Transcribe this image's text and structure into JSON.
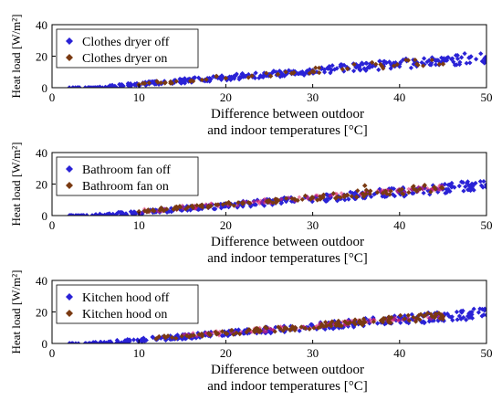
{
  "figure": {
    "panels": [
      {
        "legend": [
          "Clothes dryer off",
          "Clothes dryer on"
        ]
      },
      {
        "legend": [
          "Bathroom fan off",
          "Bathroom fan on"
        ]
      },
      {
        "legend": [
          "Kitchen hood off",
          "Kitchen hood on"
        ]
      }
    ],
    "xlabel_line1": "Difference between outdoor",
    "xlabel_line2": "and indoor temperatures [°C]",
    "ylabel": "Heat load [W/m²]"
  },
  "colors": {
    "off": "#2a22d6",
    "on": "#7a3a12",
    "on_highlight": "#e0206a",
    "axis": "#000000"
  },
  "chart_data": [
    {
      "type": "scatter",
      "xlabel": "Difference between outdoor and indoor temperatures [°C]",
      "ylabel": "Heat load [W/m²]",
      "xlim": [
        0,
        50
      ],
      "ylim": [
        0,
        40
      ],
      "xticks": [
        0,
        10,
        20,
        30,
        40,
        50
      ],
      "yticks": [
        0,
        20,
        40
      ],
      "legend_position": "top-left",
      "series": [
        {
          "name": "Clothes dryer off",
          "marker": "diamond",
          "trend": {
            "slope": 0.43,
            "intercept": -2.2
          },
          "x_range": [
            2,
            50
          ],
          "density": 340,
          "x": [
            2,
            5,
            8,
            10,
            12,
            15,
            18,
            20,
            22,
            25,
            28,
            30,
            32,
            35,
            38,
            40,
            42,
            45,
            48,
            50
          ],
          "y": [
            0,
            0,
            0.5,
            1.5,
            2.5,
            3.5,
            5,
            6,
            7,
            8.5,
            10,
            11,
            12,
            13,
            14,
            15,
            16,
            17,
            19,
            18
          ]
        },
        {
          "name": "Clothes dryer on",
          "marker": "diamond",
          "trend": {
            "slope": 0.43,
            "intercept": -2.0
          },
          "x_range": [
            10,
            45
          ],
          "density": 45,
          "x": [
            10,
            13,
            16,
            20,
            23,
            26,
            30,
            34,
            38,
            42,
            45
          ],
          "y": [
            2,
            3,
            4.5,
            6,
            7.5,
            8.5,
            10.5,
            12,
            13.5,
            15,
            15
          ]
        }
      ]
    },
    {
      "type": "scatter",
      "xlabel": "Difference between outdoor and indoor temperatures [°C]",
      "ylabel": "Heat load [W/m²]",
      "xlim": [
        0,
        50
      ],
      "ylim": [
        0,
        40
      ],
      "xticks": [
        0,
        10,
        20,
        30,
        40,
        50
      ],
      "yticks": [
        0,
        20,
        40
      ],
      "legend_position": "top-left",
      "series": [
        {
          "name": "Bathroom fan off",
          "marker": "diamond",
          "trend": {
            "slope": 0.43,
            "intercept": -2.2
          },
          "x_range": [
            2,
            50
          ],
          "density": 340,
          "x": [
            2,
            5,
            8,
            10,
            12,
            15,
            18,
            20,
            22,
            25,
            28,
            30,
            32,
            35,
            38,
            40,
            42,
            45,
            48,
            50
          ],
          "y": [
            0,
            0,
            0.5,
            1.5,
            2.5,
            3.5,
            5,
            6,
            7,
            8.5,
            10,
            11,
            12,
            13,
            14,
            15,
            16,
            17,
            19,
            18
          ]
        },
        {
          "name": "Bathroom fan on",
          "marker": "diamond",
          "trend": {
            "slope": 0.43,
            "intercept": -1.5
          },
          "x_range": [
            10,
            45
          ],
          "density": 110,
          "x": [
            10,
            14,
            18,
            22,
            26,
            30,
            34,
            36,
            40,
            44
          ],
          "y": [
            2.5,
            4,
            6,
            8,
            9.5,
            11.5,
            13,
            19,
            16,
            18
          ]
        }
      ]
    },
    {
      "type": "scatter",
      "xlabel": "Difference between outdoor and indoor temperatures [°C]",
      "ylabel": "Heat load [W/m²]",
      "xlim": [
        0,
        50
      ],
      "ylim": [
        0,
        40
      ],
      "xticks": [
        0,
        10,
        20,
        30,
        40,
        50
      ],
      "yticks": [
        0,
        20,
        40
      ],
      "legend_position": "top-left",
      "series": [
        {
          "name": "Kitchen hood off",
          "marker": "diamond",
          "trend": {
            "slope": 0.43,
            "intercept": -2.2
          },
          "x_range": [
            2,
            50
          ],
          "density": 340,
          "x": [
            2,
            5,
            8,
            10,
            12,
            15,
            18,
            20,
            22,
            25,
            28,
            30,
            32,
            35,
            38,
            40,
            42,
            45,
            48,
            50
          ],
          "y": [
            0,
            0,
            0.5,
            1.5,
            2.5,
            3.5,
            5,
            6,
            7,
            8.5,
            10,
            11,
            12,
            13,
            14,
            15,
            16,
            17,
            19,
            18
          ]
        },
        {
          "name": "Kitchen hood on",
          "marker": "diamond",
          "trend": {
            "slope": 0.43,
            "intercept": -1.8
          },
          "x_range": [
            12,
            45
          ],
          "density": 120,
          "x": [
            12,
            16,
            20,
            24,
            28,
            32,
            36,
            38,
            42,
            45
          ],
          "y": [
            3,
            5,
            6.5,
            8,
            10,
            12,
            13.5,
            15,
            16,
            17
          ]
        }
      ]
    }
  ]
}
